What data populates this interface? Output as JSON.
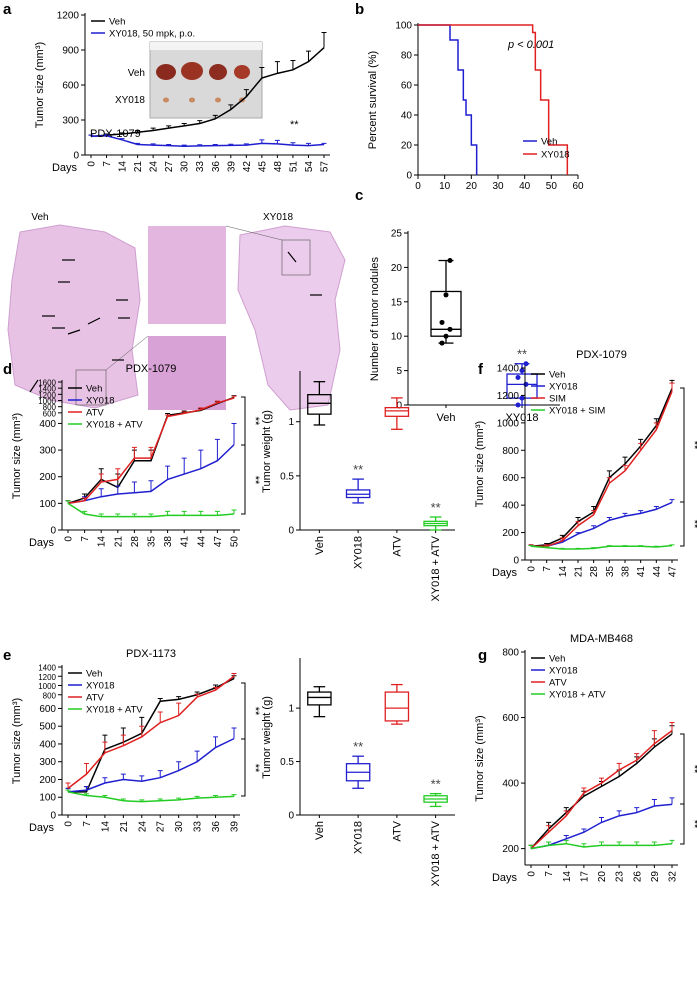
{
  "chart_data": [
    {
      "panel": "a",
      "type": "line",
      "xlabel": "Days",
      "ylabel": "Tumor size (mm³)",
      "legend": "upper left",
      "categories": [
        "0",
        "7",
        "14",
        "21",
        "24",
        "27",
        "30",
        "33",
        "36",
        "39",
        "42",
        "45",
        "48",
        "51",
        "54",
        "57"
      ],
      "series": [
        {
          "name": "Veh",
          "color": "#000000",
          "values": [
            160,
            170,
            180,
            195,
            210,
            230,
            250,
            270,
            310,
            390,
            500,
            660,
            700,
            730,
            800,
            920
          ],
          "errors": [
            10,
            10,
            10,
            15,
            20,
            20,
            20,
            25,
            30,
            40,
            60,
            90,
            100,
            80,
            90,
            130
          ]
        },
        {
          "name": "XY018, 50 mpk, p.o.",
          "color": "#1f1fd0",
          "values": [
            160,
            165,
            130,
            90,
            85,
            80,
            75,
            78,
            80,
            82,
            85,
            100,
            95,
            85,
            80,
            90
          ],
          "errors": [
            10,
            10,
            10,
            10,
            10,
            10,
            10,
            10,
            10,
            10,
            10,
            30,
            30,
            20,
            20,
            10
          ]
        }
      ],
      "ylim": [
        0,
        1200
      ],
      "yticks": [
        0,
        300,
        600,
        900,
        1200
      ],
      "annotations": [
        "PDX-1079",
        "**"
      ],
      "inset_labels": [
        "Veh",
        "XY018"
      ]
    },
    {
      "panel": "b",
      "type": "survival",
      "ylabel": "Percent survival (%)",
      "legend": "lower right",
      "series": [
        {
          "name": "Veh",
          "color": "#1f1fd0",
          "x": [
            0,
            12,
            15,
            17,
            18,
            20,
            22
          ],
          "values": [
            100,
            90,
            70,
            50,
            40,
            20,
            0
          ]
        },
        {
          "name": "XY018",
          "color": "#e02020",
          "x": [
            0,
            43,
            44,
            46,
            49,
            56
          ],
          "values": [
            100,
            95,
            70,
            50,
            20,
            0
          ]
        }
      ],
      "xlim": [
        0,
        60
      ],
      "xticks": [
        0,
        10,
        20,
        30,
        40,
        50,
        60
      ],
      "ylim": [
        0,
        100
      ],
      "yticks": [
        0,
        20,
        40,
        60,
        80,
        100
      ],
      "annotations": [
        "p < 0.001"
      ]
    },
    {
      "panel": "c",
      "type": "box",
      "ylabel": "Number of tumor nodules",
      "image_labels": [
        "Veh",
        "XY018"
      ],
      "boxes": [
        {
          "name": "Veh",
          "color": "#000000",
          "min": 9,
          "q1": 10,
          "median": 11,
          "q3": 16.5,
          "max": 21,
          "points": [
            9,
            10,
            11,
            12,
            16,
            21
          ]
        },
        {
          "name": "XY018",
          "color": "#1f1fd0",
          "min": 0,
          "q1": 1,
          "median": 3,
          "q3": 4.5,
          "max": 6,
          "points": [
            0,
            1,
            3,
            4,
            5,
            6
          ]
        }
      ],
      "ylim": [
        0,
        25
      ],
      "yticks": [
        0,
        5,
        10,
        15,
        20,
        25
      ],
      "annotations": [
        "**"
      ]
    },
    {
      "panel": "d",
      "type": "line",
      "title": "PDX-1079",
      "xlabel": "Days",
      "ylabel": "Tumor size (mm³)",
      "legend": "upper left",
      "categories": [
        "0",
        "7",
        "14",
        "21",
        "28",
        "35",
        "38",
        "41",
        "44",
        "47",
        "50"
      ],
      "series": [
        {
          "name": "Veh",
          "color": "#000000",
          "values": [
            100,
            120,
            190,
            160,
            260,
            260,
            520,
            600,
            680,
            900,
            1100
          ],
          "errors": [
            10,
            15,
            40,
            50,
            40,
            40,
            60,
            60,
            60,
            60,
            60
          ]
        },
        {
          "name": "XY018",
          "color": "#1f1fd0",
          "values": [
            100,
            110,
            125,
            135,
            140,
            145,
            190,
            210,
            230,
            260,
            320
          ],
          "errors": [
            10,
            15,
            30,
            30,
            40,
            40,
            50,
            60,
            70,
            80,
            80
          ]
        },
        {
          "name": "ATV",
          "color": "#e02020",
          "values": [
            100,
            110,
            180,
            190,
            270,
            270,
            480,
            580,
            700,
            920,
            1080
          ],
          "errors": [
            10,
            10,
            30,
            40,
            40,
            40,
            50,
            50,
            60,
            60,
            60
          ]
        },
        {
          "name": "XY018 + ATV",
          "color": "#22cc22",
          "values": [
            100,
            60,
            50,
            50,
            50,
            50,
            55,
            55,
            55,
            55,
            60
          ],
          "errors": [
            10,
            10,
            10,
            10,
            10,
            10,
            15,
            15,
            15,
            15,
            15
          ]
        }
      ],
      "ylim": [
        0,
        1600
      ],
      "ybreak": 400,
      "yticks": [
        0,
        100,
        200,
        300,
        400,
        600,
        800,
        1000,
        1200,
        1400,
        1600
      ],
      "annotations": [
        "**",
        "**"
      ]
    },
    {
      "panel": "",
      "type": "box",
      "ylabel": "Tumor weight (g)",
      "boxes": [
        {
          "name": "Veh",
          "color": "#000000",
          "min": 0.97,
          "q1": 1.07,
          "median": 1.17,
          "q3": 1.25,
          "max": 1.37
        },
        {
          "name": "XY018",
          "color": "#1f1fd0",
          "min": 0.25,
          "q1": 0.3,
          "median": 0.33,
          "q3": 0.37,
          "max": 0.47
        },
        {
          "name": "ATV",
          "color": "#e02020",
          "min": 0.93,
          "q1": 1.05,
          "median": 1.1,
          "q3": 1.13,
          "max": 1.22
        },
        {
          "name": "XY018 + ATV",
          "color": "#22cc22",
          "min": 0,
          "q1": 0.04,
          "median": 0.06,
          "q3": 0.08,
          "max": 0.12
        }
      ],
      "ylim": [
        0,
        1.45
      ],
      "yticks": [
        0,
        0.5,
        1
      ],
      "annotations": [
        "**",
        "**"
      ]
    },
    {
      "panel": "e",
      "type": "line",
      "title": "PDX-1173",
      "xlabel": "Days",
      "ylabel": "Tumor size (mm³)",
      "legend": "upper left",
      "categories": [
        "0",
        "7",
        "14",
        "21",
        "24",
        "27",
        "30",
        "33",
        "36",
        "39"
      ],
      "series": [
        {
          "name": "Veh",
          "color": "#000000",
          "values": [
            130,
            130,
            370,
            410,
            460,
            660,
            700,
            800,
            950,
            1150
          ],
          "errors": [
            20,
            30,
            80,
            80,
            90,
            60,
            60,
            60,
            60,
            60
          ]
        },
        {
          "name": "XY018",
          "color": "#1f1fd0",
          "values": [
            130,
            140,
            180,
            200,
            190,
            210,
            250,
            300,
            380,
            430
          ],
          "errors": [
            20,
            20,
            30,
            30,
            30,
            40,
            50,
            60,
            60,
            60
          ]
        },
        {
          "name": "ATV",
          "color": "#e02020",
          "values": [
            150,
            230,
            350,
            390,
            440,
            520,
            560,
            750,
            900,
            1200
          ],
          "errors": [
            30,
            60,
            60,
            60,
            60,
            60,
            60,
            60,
            60,
            60
          ]
        },
        {
          "name": "XY018 + ATV",
          "color": "#22cc22",
          "values": [
            130,
            110,
            100,
            80,
            75,
            80,
            85,
            95,
            100,
            105
          ],
          "errors": [
            10,
            10,
            10,
            10,
            10,
            10,
            10,
            10,
            10,
            10
          ]
        }
      ],
      "ylim": [
        0,
        1400
      ],
      "ybreak": 600,
      "yticks": [
        0,
        100,
        200,
        300,
        400,
        500,
        600,
        800,
        1000,
        1200,
        1400
      ],
      "annotations": [
        "**",
        "**"
      ]
    },
    {
      "panel": "",
      "type": "box",
      "ylabel": "Tumor weight (g)",
      "boxes": [
        {
          "name": "Veh",
          "color": "#000000",
          "min": 0.92,
          "q1": 1.03,
          "median": 1.1,
          "q3": 1.15,
          "max": 1.2
        },
        {
          "name": "XY018",
          "color": "#1f1fd0",
          "min": 0.25,
          "q1": 0.32,
          "median": 0.4,
          "q3": 0.48,
          "max": 0.55
        },
        {
          "name": "ATV",
          "color": "#e02020",
          "min": 0.85,
          "q1": 0.88,
          "median": 1,
          "q3": 1.15,
          "max": 1.22
        },
        {
          "name": "XY018 + ATV",
          "color": "#22cc22",
          "min": 0.08,
          "q1": 0.12,
          "median": 0.15,
          "q3": 0.18,
          "max": 0.2
        }
      ],
      "ylim": [
        0,
        1.45
      ],
      "yticks": [
        0,
        0.5,
        1
      ],
      "annotations": [
        "**",
        "**"
      ]
    },
    {
      "panel": "f",
      "type": "line",
      "title": "PDX-1079",
      "xlabel": "Days",
      "ylabel": "Tumor size (mm³)",
      "legend": "upper left",
      "categories": [
        "0",
        "7",
        "14",
        "21",
        "28",
        "35",
        "38",
        "41",
        "44",
        "47"
      ],
      "series": [
        {
          "name": "Veh",
          "color": "#000000",
          "values": [
            100,
            110,
            160,
            280,
            350,
            600,
            700,
            830,
            980,
            1250
          ],
          "errors": [
            10,
            10,
            20,
            30,
            40,
            50,
            50,
            50,
            50,
            60
          ]
        },
        {
          "name": "XY018",
          "color": "#1f1fd0",
          "values": [
            100,
            100,
            130,
            190,
            230,
            290,
            320,
            340,
            370,
            420
          ],
          "errors": [
            10,
            10,
            10,
            10,
            20,
            20,
            20,
            20,
            20,
            20
          ]
        },
        {
          "name": "SIM",
          "color": "#e02020",
          "values": [
            100,
            100,
            140,
            250,
            330,
            560,
            650,
            800,
            950,
            1230
          ],
          "errors": [
            10,
            10,
            20,
            30,
            30,
            40,
            40,
            50,
            50,
            60
          ]
        },
        {
          "name": "XY018 + SIM",
          "color": "#22cc22",
          "values": [
            100,
            90,
            80,
            80,
            85,
            100,
            100,
            100,
            95,
            105
          ],
          "errors": [
            5,
            5,
            5,
            5,
            5,
            5,
            5,
            5,
            5,
            5
          ]
        }
      ],
      "ylim": [
        0,
        1400
      ],
      "yticks": [
        0,
        200,
        400,
        600,
        800,
        1000,
        1200,
        1400
      ],
      "annotations": [
        "**",
        "**"
      ]
    },
    {
      "panel": "g",
      "type": "line",
      "title": "MDA-MB468",
      "xlabel": "Days",
      "ylabel": "Tumor size (mm³)",
      "legend": "upper left",
      "categories": [
        "0",
        "7",
        "14",
        "17",
        "20",
        "23",
        "26",
        "29",
        "32"
      ],
      "series": [
        {
          "name": "Veh",
          "color": "#000000",
          "values": [
            200,
            260,
            310,
            360,
            390,
            420,
            460,
            510,
            550
          ],
          "errors": [
            10,
            20,
            15,
            15,
            15,
            20,
            20,
            25,
            25
          ]
        },
        {
          "name": "XY018",
          "color": "#1f1fd0",
          "values": [
            200,
            210,
            230,
            250,
            280,
            300,
            310,
            330,
            335
          ],
          "errors": [
            10,
            10,
            10,
            10,
            15,
            15,
            15,
            20,
            20
          ]
        },
        {
          "name": "ATV",
          "color": "#e02020",
          "values": [
            200,
            250,
            300,
            370,
            400,
            440,
            470,
            520,
            560
          ],
          "errors": [
            10,
            20,
            15,
            15,
            15,
            20,
            20,
            40,
            25
          ]
        },
        {
          "name": "XY018 + ATV",
          "color": "#22cc22",
          "values": [
            200,
            210,
            215,
            205,
            210,
            210,
            210,
            210,
            215
          ],
          "errors": [
            10,
            10,
            10,
            10,
            10,
            10,
            10,
            10,
            10
          ]
        }
      ],
      "ylim": [
        150,
        800
      ],
      "yticks": [
        200,
        400,
        600,
        800
      ],
      "annotations": [
        "**",
        "**"
      ]
    }
  ]
}
